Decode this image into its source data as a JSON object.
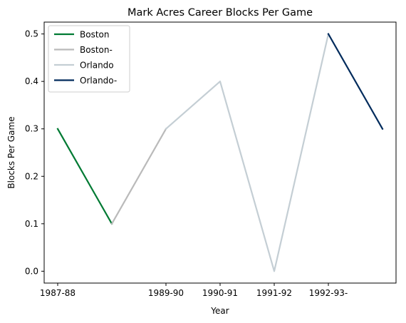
{
  "chart_data": {
    "type": "line",
    "title": "Mark Acres Career Blocks Per Game",
    "xlabel": "Year",
    "ylabel": "Blocks Per Game",
    "x_tick_labels": [
      "1987-88",
      "1989-90",
      "1990-91",
      "1991-92",
      "1992-93-"
    ],
    "x_tick_positions": [
      0,
      2,
      3,
      4,
      5
    ],
    "y_ticks": [
      0.0,
      0.1,
      0.2,
      0.3,
      0.4,
      0.5
    ],
    "y_tick_labels": [
      "0.0",
      "0.1",
      "0.2",
      "0.3",
      "0.4",
      "0.5"
    ],
    "xlim": [
      -0.25,
      6.25
    ],
    "ylim": [
      -0.025,
      0.525
    ],
    "grid": false,
    "legend_position": "top-left",
    "series": [
      {
        "name": "Boston",
        "color": "#007A33",
        "x": [
          0,
          1
        ],
        "y": [
          0.3,
          0.1
        ]
      },
      {
        "name": "Boston-",
        "color": "#BABABA",
        "x": [
          1,
          2
        ],
        "y": [
          0.1,
          0.3
        ]
      },
      {
        "name": "Orlando",
        "color": "#C4CED4",
        "x": [
          2,
          3,
          4,
          5
        ],
        "y": [
          0.3,
          0.4,
          0.0,
          0.5
        ]
      },
      {
        "name": "Orlando-",
        "color": "#002B5C",
        "x": [
          5,
          6
        ],
        "y": [
          0.5,
          0.3
        ]
      }
    ]
  }
}
